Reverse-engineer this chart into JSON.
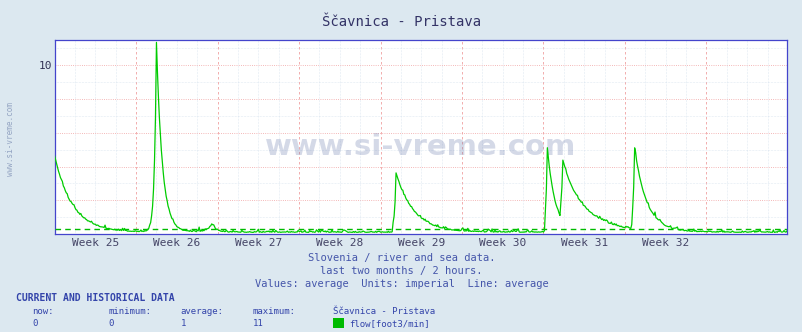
{
  "title": "Ščavnica - Pristava",
  "bg_color": "#dce8f0",
  "plot_bg_color": "#ffffff",
  "line_color": "#00cc00",
  "avg_line_color": "#00bb00",
  "axis_color": "#4444cc",
  "grid_color_pink": "#f0a0a0",
  "grid_color_gray": "#c8d8e8",
  "ylim": [
    0,
    11.5
  ],
  "week_labels": [
    "Week 25",
    "Week 26",
    "Week 27",
    "Week 28",
    "Week 29",
    "Week 30",
    "Week 31",
    "Week 32"
  ],
  "subtitle1": "Slovenia / river and sea data.",
  "subtitle2": "last two months / 2 hours.",
  "subtitle3": "Values: average  Units: imperial  Line: average",
  "footer_title": "CURRENT AND HISTORICAL DATA",
  "footer_cols": [
    "now:",
    "minimum:",
    "average:",
    "maximum:",
    "Ščavnica - Pristava"
  ],
  "footer_vals": [
    "0",
    "0",
    "1",
    "11",
    "flow[foot3/min]"
  ],
  "legend_color": "#00bb00",
  "watermark": "www.si-vreme.com",
  "side_text": "www.si-vreme.com",
  "avg_val": 0.28,
  "num_points": 756
}
